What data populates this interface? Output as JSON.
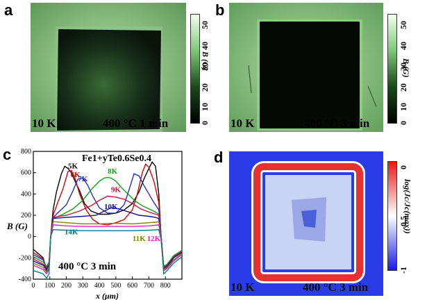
{
  "panels": {
    "a": {
      "label": "a",
      "temp": "10 K",
      "cond": "400 °C 1 min",
      "colorbar": {
        "title": "B (G)",
        "ticks": [
          "50",
          "40",
          "30",
          "20",
          "10",
          "0"
        ],
        "range": [
          0,
          50
        ]
      }
    },
    "b": {
      "label": "b",
      "temp": "10 K",
      "cond": "400 °C 3 min",
      "colorbar": {
        "title": "B (G)",
        "ticks": [
          "50",
          "40",
          "30",
          "20",
          "10",
          "0"
        ],
        "range": [
          0,
          50
        ]
      }
    },
    "c": {
      "label": "c"
    },
    "d": {
      "label": "d",
      "temp": "10 K",
      "cond": "400 °C 3 min",
      "colorbar": {
        "title": "log(Jc/Jc(max))",
        "ticks": [
          "0",
          "-0.5",
          "-1"
        ],
        "range": [
          -1,
          0
        ]
      }
    }
  },
  "chart_data": {
    "type": "line",
    "title": "Fe1+yTe0.6Se0.4",
    "annotation": "400 °C  3 min",
    "xlabel": "x (μm)",
    "ylabel": "B (G)",
    "xlim": [
      0,
      900
    ],
    "ylim": [
      -400,
      800
    ],
    "xticks": [
      "0",
      "100",
      "200",
      "300",
      "400",
      "500",
      "600",
      "700",
      "800"
    ],
    "yticks": [
      "-400",
      "-200",
      "0",
      "200",
      "400",
      "600",
      "800"
    ],
    "series": [
      {
        "name": "5K",
        "color": "#000000",
        "x": [
          0,
          60,
          80,
          95,
          105,
          120,
          140,
          170,
          190,
          210,
          230,
          250,
          280,
          310,
          350,
          400,
          450,
          500,
          550,
          600,
          640,
          670,
          700,
          720,
          740,
          760,
          775,
          790,
          810,
          850,
          900
        ],
        "y": [
          -120,
          -200,
          -330,
          -300,
          0,
          250,
          420,
          590,
          660,
          640,
          600,
          530,
          430,
          310,
          240,
          210,
          210,
          220,
          250,
          310,
          420,
          540,
          640,
          700,
          660,
          400,
          -50,
          -310,
          -290,
          -200,
          -140
        ]
      },
      {
        "name": "6K",
        "color": "#e00000",
        "x": [
          0,
          60,
          80,
          95,
          105,
          120,
          150,
          180,
          210,
          230,
          250,
          280,
          320,
          360,
          400,
          450,
          500,
          550,
          600,
          630,
          660,
          680,
          700,
          730,
          760,
          775,
          790,
          810,
          850,
          900
        ],
        "y": [
          -150,
          -210,
          -300,
          -260,
          0,
          200,
          330,
          450,
          610,
          620,
          560,
          400,
          250,
          160,
          120,
          110,
          130,
          160,
          250,
          400,
          600,
          680,
          650,
          520,
          320,
          -20,
          -300,
          -280,
          -190,
          -130
        ]
      },
      {
        "name": "7K",
        "color": "#2030c0",
        "x": [
          0,
          60,
          80,
          95,
          105,
          120,
          160,
          200,
          240,
          270,
          300,
          330,
          360,
          400,
          450,
          500,
          550,
          580,
          610,
          640,
          670,
          700,
          730,
          760,
          775,
          790,
          810,
          850,
          900
        ],
        "y": [
          -170,
          -220,
          -290,
          -250,
          0,
          180,
          240,
          300,
          430,
          540,
          550,
          480,
          380,
          270,
          220,
          220,
          300,
          440,
          590,
          570,
          480,
          400,
          320,
          250,
          -10,
          -290,
          -270,
          -180,
          -130
        ]
      },
      {
        "name": "8K",
        "color": "#10a010",
        "x": [
          0,
          60,
          80,
          95,
          105,
          120,
          180,
          240,
          300,
          350,
          400,
          430,
          450,
          470,
          500,
          540,
          580,
          620,
          660,
          700,
          740,
          760,
          775,
          790,
          810,
          850,
          900
        ],
        "y": [
          -190,
          -240,
          -280,
          -240,
          0,
          170,
          210,
          260,
          340,
          440,
          520,
          550,
          555,
          550,
          520,
          450,
          390,
          330,
          290,
          260,
          230,
          210,
          -10,
          -280,
          -260,
          -180,
          -130
        ]
      },
      {
        "name": "9K",
        "color": "#d01040",
        "x": [
          0,
          60,
          80,
          95,
          105,
          120,
          200,
          280,
          350,
          400,
          450,
          500,
          550,
          600,
          650,
          700,
          740,
          760,
          775,
          790,
          810,
          850,
          900
        ],
        "y": [
          -210,
          -260,
          -300,
          -260,
          0,
          180,
          200,
          240,
          290,
          340,
          380,
          370,
          350,
          310,
          260,
          230,
          210,
          200,
          -20,
          -290,
          -270,
          -190,
          -140
        ]
      },
      {
        "name": "10K",
        "color": "#1010a0",
        "x": [
          0,
          60,
          80,
          95,
          105,
          120,
          200,
          300,
          380,
          430,
          470,
          520,
          580,
          640,
          700,
          740,
          760,
          775,
          790,
          810,
          850,
          900
        ],
        "y": [
          -230,
          -270,
          -310,
          -270,
          0,
          170,
          180,
          190,
          200,
          240,
          270,
          260,
          230,
          200,
          190,
          180,
          170,
          -20,
          -300,
          -280,
          -200,
          -150
        ]
      },
      {
        "name": "11K",
        "color": "#808000",
        "x": [
          0,
          60,
          80,
          95,
          105,
          120,
          200,
          300,
          400,
          500,
          600,
          700,
          740,
          760,
          775,
          790,
          810,
          850,
          900
        ],
        "y": [
          -250,
          -290,
          -330,
          -290,
          0,
          140,
          130,
          120,
          120,
          125,
          120,
          130,
          135,
          140,
          -20,
          -310,
          -290,
          -220,
          -160
        ]
      },
      {
        "name": "12K",
        "color": "#e020c0",
        "x": [
          0,
          60,
          80,
          95,
          105,
          120,
          200,
          300,
          400,
          500,
          600,
          700,
          760,
          775,
          790,
          810,
          850,
          900
        ],
        "y": [
          -270,
          -310,
          -350,
          -310,
          0,
          110,
          100,
          95,
          95,
          95,
          95,
          100,
          110,
          -20,
          -320,
          -300,
          -230,
          -170
        ]
      },
      {
        "name": "14K",
        "color": "#008080",
        "x": [
          0,
          60,
          80,
          95,
          105,
          120,
          200,
          300,
          400,
          500,
          600,
          700,
          760,
          775,
          790,
          810,
          850,
          900
        ],
        "y": [
          -320,
          -350,
          -390,
          -350,
          0,
          65,
          60,
          55,
          55,
          55,
          55,
          60,
          65,
          -30,
          -350,
          -320,
          -250,
          -190
        ]
      }
    ]
  }
}
